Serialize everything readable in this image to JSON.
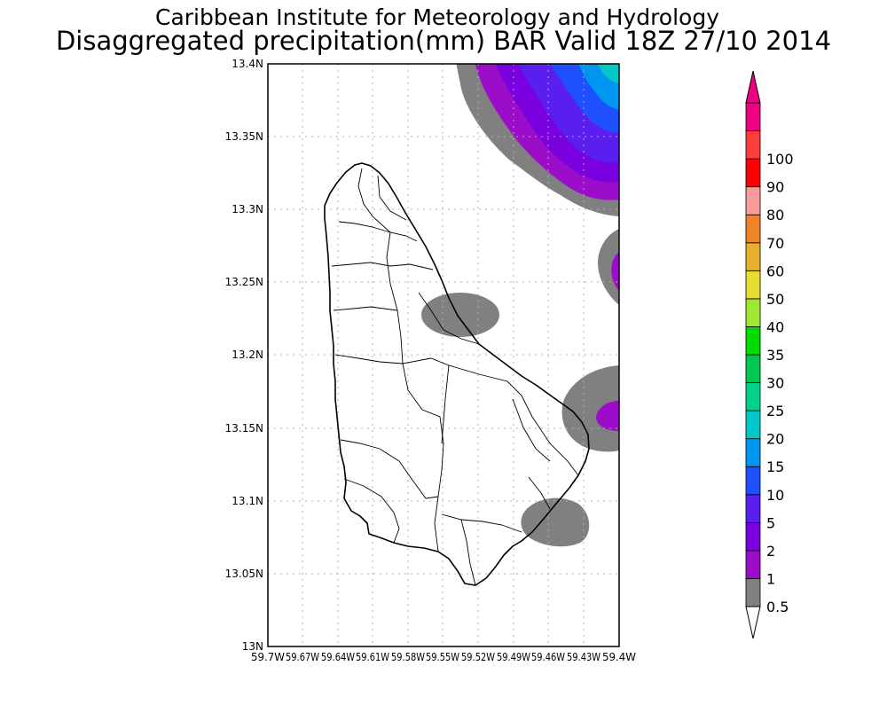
{
  "title": {
    "line1": "Caribbean Institute for Meteorology and Hydrology",
    "line2": "Disaggregated precipitation(mm) BAR Valid 18Z 27/10 2014"
  },
  "map": {
    "lat_labels": [
      "13.4N",
      "13.35N",
      "13.3N",
      "13.25N",
      "13.2N",
      "13.15N",
      "13.1N",
      "13.05N",
      "13N"
    ],
    "lon_labels": [
      "59.7W",
      "59.67W",
      "59.64W",
      "59.61W",
      "59.58W",
      "59.55W",
      "59.52W",
      "59.49W",
      "59.46W",
      "59.43W",
      "59.4W"
    ],
    "lat_range": [
      13.0,
      13.4
    ],
    "lon_range": [
      -59.7,
      -59.4
    ],
    "grid": true
  },
  "colorbar": {
    "levels": [
      "0.5",
      "1",
      "2",
      "5",
      "10",
      "15",
      "20",
      "25",
      "30",
      "35",
      "40",
      "50",
      "60",
      "70",
      "80",
      "90",
      "100"
    ],
    "colors": [
      "#808080",
      "#9b0dc8",
      "#7a00e0",
      "#5a1ef0",
      "#1e50ff",
      "#0096f0",
      "#00c8c8",
      "#00d28c",
      "#00c850",
      "#00dc00",
      "#a0e632",
      "#e6dc32",
      "#e6af2d",
      "#f08228",
      "#fa9b9b",
      "#ff0000",
      "#ff3c3c",
      "#f00082"
    ],
    "under_color": "#ffffff",
    "over_color": "#f00082"
  }
}
